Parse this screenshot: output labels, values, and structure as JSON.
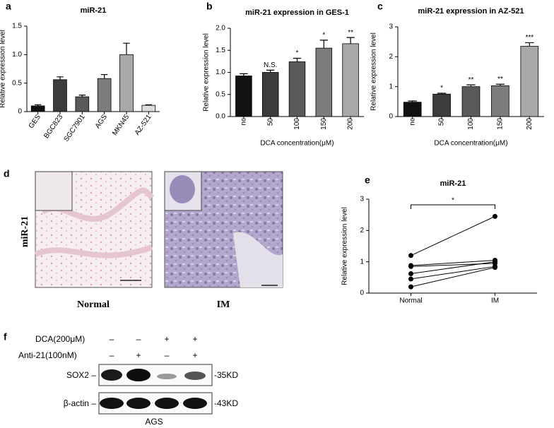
{
  "chart_data": [
    {
      "type": "bar",
      "letter": "a",
      "title": "miR-21",
      "ylabel": "Relative expression level",
      "categories": [
        "GES",
        "BGC823",
        "SGC7901",
        "AGS",
        "MKN45",
        "AZ-521"
      ],
      "values": [
        0.1,
        0.56,
        0.26,
        0.58,
        1.0,
        0.11
      ],
      "errors": [
        0.02,
        0.05,
        0.03,
        0.07,
        0.2,
        0.01
      ],
      "colors": [
        "#111111",
        "#3c3c3c",
        "#5a5a5a",
        "#7c7c7c",
        "#a8a8a8",
        "#dcdcdc"
      ],
      "ylim": [
        0,
        1.5
      ],
      "yticks": [
        0,
        0.5,
        {
          "value": 1,
          "label": "1.0"
        },
        1.5
      ]
    },
    {
      "type": "bar",
      "letter": "b",
      "title": "miR-21 expression in GES-1",
      "ylabel": "Relative expression level",
      "xlabel": "DCA concentration(μM)",
      "categories": [
        "nc",
        "50",
        "100",
        "150",
        "200"
      ],
      "values": [
        0.92,
        1.0,
        1.24,
        1.55,
        1.65
      ],
      "errors": [
        0.05,
        0.05,
        0.08,
        0.18,
        0.14
      ],
      "annotations": [
        null,
        "N.S.",
        "*",
        "*",
        "**"
      ],
      "colors": [
        "#111111",
        "#3c3c3c",
        "#5a5a5a",
        "#7c7c7c",
        "#a8a8a8"
      ],
      "ylim": [
        0,
        2
      ],
      "yticks": [
        {
          "value": 0,
          "label": "0.0"
        },
        0.5,
        {
          "value": 1,
          "label": "1.0"
        },
        1.5,
        {
          "value": 2,
          "label": "2.0"
        }
      ]
    },
    {
      "type": "bar",
      "letter": "c",
      "title": "miR-21 expression in AZ-521",
      "ylabel": "Relative expression level",
      "xlabel": "DCA concentration(μM)",
      "categories": [
        "nc",
        "50",
        "100",
        "150",
        "200"
      ],
      "values": [
        0.48,
        0.75,
        1.0,
        1.03,
        2.35
      ],
      "errors": [
        0.04,
        0.03,
        0.06,
        0.05,
        0.12
      ],
      "annotations": [
        null,
        "*",
        "**",
        "**",
        "***"
      ],
      "colors": [
        "#111111",
        "#3c3c3c",
        "#5a5a5a",
        "#7c7c7c",
        "#a8a8a8"
      ],
      "ylim": [
        0,
        3
      ],
      "yticks": [
        0,
        1,
        2,
        3
      ]
    },
    {
      "type": "line",
      "letter": "e",
      "title": "miR-21",
      "ylabel": "Relative expression level",
      "significance": "*",
      "categories": [
        "Normal",
        "IM"
      ],
      "series": [
        {
          "color": "#000000",
          "values": [
            1.2,
            2.45
          ]
        },
        {
          "color": "#000000",
          "values": [
            0.88,
            1.05
          ]
        },
        {
          "color": "#000000",
          "values": [
            0.85,
            0.95
          ]
        },
        {
          "color": "#000000",
          "values": [
            0.62,
            1.0
          ]
        },
        {
          "color": "#000000",
          "values": [
            0.45,
            0.85
          ]
        },
        {
          "color": "#000000",
          "values": [
            0.2,
            0.82
          ]
        }
      ],
      "ylim": [
        0,
        3
      ],
      "yticks": [
        0,
        1,
        2,
        3
      ]
    }
  ],
  "histology": {
    "letter": "d",
    "row_label": "miR-21",
    "images": [
      "Normal",
      "IM"
    ]
  },
  "blot": {
    "letter": "f",
    "treatments": [
      {
        "label": "DCA(200μM)",
        "signs": [
          "–",
          "–",
          "+",
          "+"
        ]
      },
      {
        "label": "Anti-21(100nM)",
        "signs": [
          "–",
          "+",
          "–",
          "+"
        ]
      }
    ],
    "bands": [
      {
        "label": "SOX2 –",
        "size": "35KD"
      },
      {
        "label": "β-actin –",
        "size": "43KD"
      }
    ],
    "cell_line": "AGS"
  }
}
